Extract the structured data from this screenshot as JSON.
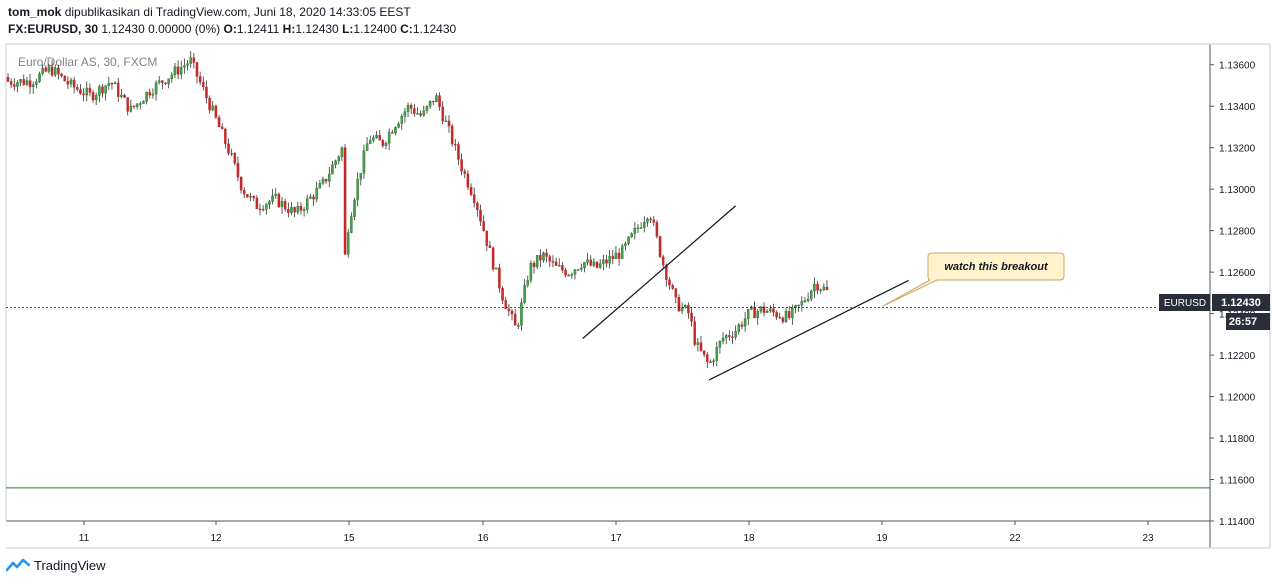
{
  "header": {
    "author": "tom_mok",
    "published_text": "dipublikasikan di TradingView.com, Juni 18, 2020 14:33:05 EEST",
    "symbol_line": "FX:EURUSD, 30",
    "change": "1.12430 0.00000 (0%)",
    "o_label": "O:",
    "o": "1.12411",
    "h_label": "H:",
    "h": "1.12430",
    "l_label": "L:",
    "l": "1.12400",
    "c_label": "C:",
    "c": "1.12430"
  },
  "watermark": "Euro/Dollar AS, 30, FXCM",
  "annotation": "watch this breakout",
  "price_badge": {
    "symbol": "EURUSD",
    "price": "1.12430",
    "countdown": "26:57"
  },
  "footer": {
    "brand": "TradingView"
  },
  "colors": {
    "up": "#26a69a",
    "down": "#c62828",
    "upFill": "#2e7d32",
    "hline": "#2e7d32",
    "axis": "#555555"
  },
  "chart_data": {
    "type": "candlestick",
    "symbol": "FX:EURUSD",
    "interval": "30",
    "y_ticks": [
      "1.13600",
      "1.13400",
      "1.13200",
      "1.13000",
      "1.12800",
      "1.12600",
      "1.12400",
      "1.12200",
      "1.12000",
      "1.11800",
      "1.11600",
      "1.11400"
    ],
    "ylim": [
      1.114,
      1.137
    ],
    "x_ticks": [
      "11",
      "12",
      "15",
      "16",
      "17",
      "18",
      "19",
      "22",
      "23"
    ],
    "last_price": 1.1243,
    "horizontal_line": 1.1156,
    "trendlines": [
      {
        "from": [
          "16.75",
          1.1228
        ],
        "to": [
          "17.9",
          1.1292
        ]
      },
      {
        "from": [
          "17.7",
          1.1208
        ],
        "to": [
          "19.2",
          1.1256
        ]
      }
    ],
    "path": [
      [
        10.6,
        1.1352
      ],
      [
        10.75,
        1.1358
      ],
      [
        10.9,
        1.135
      ],
      [
        11.05,
        1.1345
      ],
      [
        11.2,
        1.1352
      ],
      [
        11.35,
        1.1338
      ],
      [
        11.5,
        1.1348
      ],
      [
        11.65,
        1.1355
      ],
      [
        11.8,
        1.1362
      ],
      [
        11.95,
        1.134
      ],
      [
        12.1,
        1.1318
      ],
      [
        12.2,
        1.13
      ],
      [
        12.3,
        1.1292
      ],
      [
        12.45,
        1.1295
      ],
      [
        12.6,
        1.1288
      ],
      [
        12.8,
        1.1302
      ],
      [
        12.95,
        1.132
      ],
      [
        13.05,
        1.1328
      ],
      [
        13.15,
        1.1318
      ],
      [
        13.25,
        1.13
      ],
      [
        13.35,
        1.1285
      ],
      [
        13.45,
        1.1262
      ],
      [
        13.55,
        1.125
      ],
      [
        13.65,
        1.1228
      ],
      [
        13.75,
        1.1222
      ],
      [
        13.9,
        1.1248
      ],
      [
        14.05,
        1.1262
      ],
      [
        14.2,
        1.1255
      ],
      [
        14.3,
        1.1266
      ],
      [
        14.4,
        1.125
      ],
      [
        14.5,
        1.124
      ],
      [
        14.6,
        1.1262
      ],
      [
        14.7,
        1.125
      ],
      [
        14.8,
        1.1255
      ],
      [
        14.85,
        1.1262
      ],
      [
        14.95,
        1.128
      ],
      [
        15.05,
        1.13
      ],
      [
        15.15,
        1.1325
      ],
      [
        15.25,
        1.1322
      ],
      [
        15.35,
        1.1332
      ],
      [
        15.45,
        1.134
      ],
      [
        15.55,
        1.1335
      ],
      [
        15.65,
        1.1345
      ],
      [
        15.75,
        1.1328
      ],
      [
        15.85,
        1.131
      ],
      [
        15.95,
        1.1295
      ],
      [
        16.05,
        1.127
      ],
      [
        16.15,
        1.1248
      ],
      [
        16.25,
        1.1232
      ],
      [
        16.35,
        1.1262
      ],
      [
        16.45,
        1.1268
      ],
      [
        16.55,
        1.1262
      ],
      [
        16.65,
        1.126
      ],
      [
        16.75,
        1.1265
      ],
      [
        16.85,
        1.1262
      ],
      [
        16.95,
        1.1266
      ],
      [
        17.05,
        1.127
      ],
      [
        17.15,
        1.128
      ],
      [
        17.25,
        1.129
      ],
      [
        17.35,
        1.1265
      ],
      [
        17.45,
        1.1245
      ],
      [
        17.55,
        1.124
      ],
      [
        17.6,
        1.1225
      ],
      [
        17.7,
        1.1215
      ],
      [
        17.8,
        1.1228
      ],
      [
        17.9,
        1.1232
      ],
      [
        18.0,
        1.124
      ],
      [
        18.1,
        1.1242
      ],
      [
        18.2,
        1.124
      ],
      [
        18.3,
        1.1238
      ],
      [
        18.4,
        1.1245
      ],
      [
        18.5,
        1.1255
      ],
      [
        18.6,
        1.125
      ],
      [
        18.7,
        1.1255
      ],
      [
        18.8,
        1.1248
      ],
      [
        18.85,
        1.1243
      ]
    ]
  }
}
